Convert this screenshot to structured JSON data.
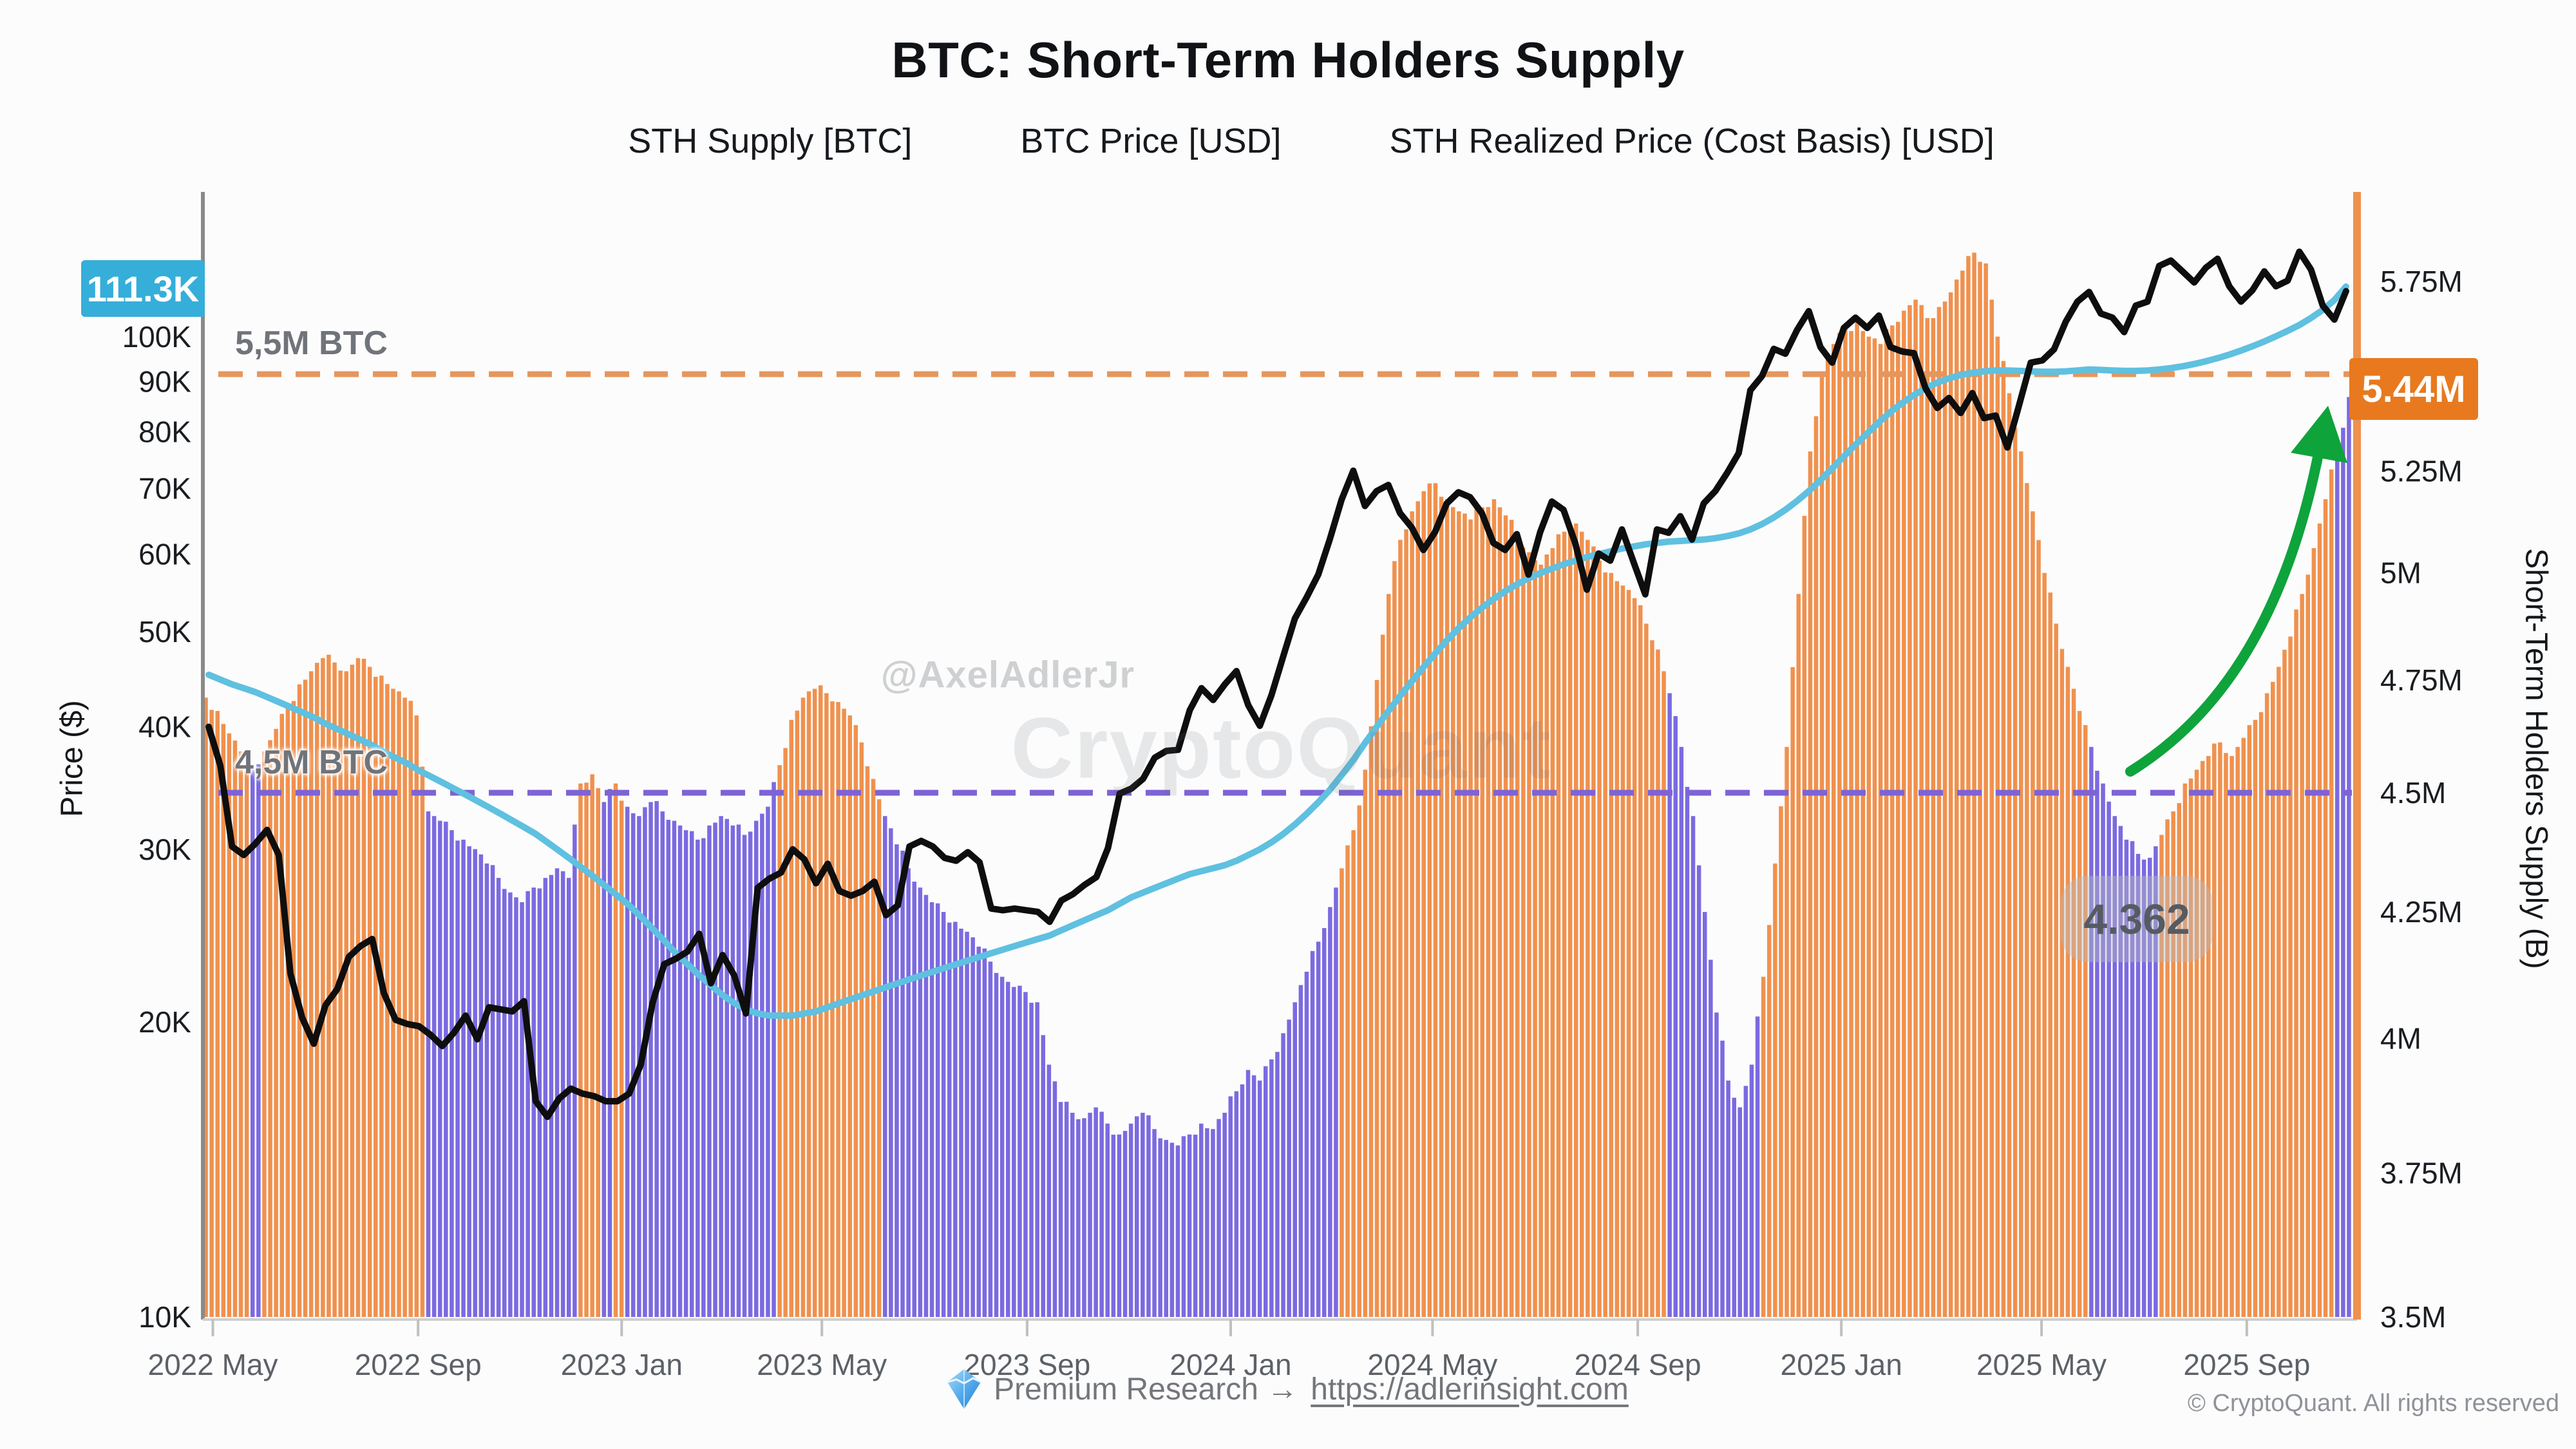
{
  "title": "BTC: Short-Term Holders Supply",
  "legend": {
    "sth_supply": "STH Supply [BTC]",
    "btc_price": "BTC Price [USD]",
    "sth_realized": "STH Realized Price (Cost Basis) [USD]"
  },
  "axes": {
    "left_title": "Price ($)",
    "right_title": "Short-Term Holders Supply (B)"
  },
  "badges": {
    "last_price": "111.3K",
    "last_supply": "5.44M"
  },
  "annotations": {
    "upper_line_label": "5,5M BTC",
    "lower_line_label": "4,5M BTC",
    "min_label": "4.362"
  },
  "watermark": {
    "handle": "@AxelAdlerJr",
    "brand": "CryptoQuant"
  },
  "footer": {
    "gem_icon": "diamond-gem-icon",
    "label": "Premium Research →",
    "link": "https://adlerinsight.com",
    "copyright": "© CryptoQuant. All rights reserved"
  },
  "chart_data": {
    "type": "bar+line",
    "title": "BTC: Short-Term Holders Supply",
    "start_date": "2022-04-25",
    "step": "7d",
    "total_days": 1288,
    "price_axis": {
      "scale": "log",
      "min": 10,
      "max": 138,
      "unit": "K USD"
    },
    "supply_axis": {
      "scale": "log",
      "min": 3.5,
      "max": 5.98,
      "unit": "M BTC"
    },
    "price_ticks": [
      {
        "v": 10,
        "l": "10K"
      },
      {
        "v": 20,
        "l": "20K"
      },
      {
        "v": 30,
        "l": "30K"
      },
      {
        "v": 40,
        "l": "40K"
      },
      {
        "v": 50,
        "l": "50K"
      },
      {
        "v": 60,
        "l": "60K"
      },
      {
        "v": 70,
        "l": "70K"
      },
      {
        "v": 80,
        "l": "80K"
      },
      {
        "v": 90,
        "l": "90K"
      },
      {
        "v": 100,
        "l": "100K"
      }
    ],
    "supply_ticks": [
      {
        "v": 3.5,
        "l": "3.5M"
      },
      {
        "v": 3.75,
        "l": "3.75M"
      },
      {
        "v": 4,
        "l": "4M"
      },
      {
        "v": 4.25,
        "l": "4.25M"
      },
      {
        "v": 4.5,
        "l": "4.5M"
      },
      {
        "v": 4.75,
        "l": "4.75M"
      },
      {
        "v": 5,
        "l": "5M"
      },
      {
        "v": 5.25,
        "l": "5.25M"
      },
      {
        "v": 5.5,
        "l": "5.5M"
      },
      {
        "v": 5.75,
        "l": "5.75M"
      }
    ],
    "x_ticks": [
      {
        "l": "2022 May",
        "d": 6
      },
      {
        "l": "2022 Sep",
        "d": 129
      },
      {
        "l": "2023 Jan",
        "d": 251
      },
      {
        "l": "2023 May",
        "d": 371
      },
      {
        "l": "2023 Sep",
        "d": 494
      },
      {
        "l": "2024 Jan",
        "d": 616
      },
      {
        "l": "2024 May",
        "d": 737
      },
      {
        "l": "2024 Sep",
        "d": 860
      },
      {
        "l": "2025 Jan",
        "d": 982
      },
      {
        "l": "2025 May",
        "d": 1102
      },
      {
        "l": "2025 Sep",
        "d": 1225
      }
    ],
    "reference_lines": [
      {
        "v": 5.5,
        "axis": "supply",
        "label": "5,5M BTC",
        "color": "#e6965c"
      },
      {
        "v": 4.5,
        "axis": "supply",
        "label": "4,5M BTC",
        "color": "#7d63d6"
      }
    ],
    "min_annotation": {
      "value": 4.362,
      "week_index": 166
    },
    "last_values": {
      "btc_price_k": 111.3,
      "sth_supply_m": 5.44
    },
    "colors": {
      "supply_up": "#f0914e",
      "supply_down": "#7b6ae0",
      "price_line": "#0e0e0e",
      "realized_line": "#5fc0e0",
      "arrow_green": "#0fa33c",
      "price_badge": "#35aed9",
      "supply_badge": "#e8791e",
      "right_spine": "#f0914e",
      "left_spine": "#8a8a8a"
    },
    "series": [
      {
        "name": "STH Supply [BTC]",
        "unit": "M",
        "values": [
          4.71,
          4.68,
          4.63,
          4.59,
          4.55,
          4.59,
          4.64,
          4.69,
          4.74,
          4.77,
          4.8,
          4.79,
          4.77,
          4.8,
          4.78,
          4.76,
          4.73,
          4.71,
          4.67,
          4.46,
          4.44,
          4.42,
          4.4,
          4.38,
          4.35,
          4.32,
          4.29,
          4.27,
          4.3,
          4.32,
          4.34,
          4.32,
          4.52,
          4.54,
          4.48,
          4.52,
          4.47,
          4.45,
          4.48,
          4.46,
          4.44,
          4.42,
          4.4,
          4.43,
          4.45,
          4.43,
          4.41,
          4.44,
          4.47,
          4.56,
          4.66,
          4.71,
          4.73,
          4.72,
          4.7,
          4.67,
          4.61,
          4.53,
          4.45,
          4.39,
          4.34,
          4.3,
          4.27,
          4.25,
          4.23,
          4.21,
          4.18,
          4.15,
          4.12,
          4.1,
          4.09,
          4.07,
          3.95,
          3.88,
          3.86,
          3.85,
          3.87,
          3.84,
          3.82,
          3.84,
          3.86,
          3.83,
          3.81,
          3.8,
          3.82,
          3.84,
          3.83,
          3.86,
          3.9,
          3.94,
          3.92,
          3.96,
          4.01,
          4.07,
          4.13,
          4.19,
          4.26,
          4.34,
          4.42,
          4.55,
          4.75,
          4.95,
          5.08,
          5.15,
          5.2,
          5.22,
          5.18,
          5.15,
          5.13,
          5.16,
          5.18,
          5.14,
          5.1,
          5.05,
          5.02,
          5.06,
          5.1,
          5.12,
          5.08,
          5.03,
          5.0,
          4.97,
          4.94,
          4.88,
          4.82,
          4.72,
          4.6,
          4.45,
          4.25,
          4.05,
          3.92,
          3.87,
          3.95,
          4.12,
          4.35,
          4.6,
          4.95,
          5.3,
          5.5,
          5.58,
          5.62,
          5.64,
          5.6,
          5.58,
          5.63,
          5.67,
          5.7,
          5.65,
          5.68,
          5.72,
          5.78,
          5.83,
          5.8,
          5.6,
          5.45,
          5.3,
          5.15,
          5.0,
          4.88,
          4.78,
          4.68,
          4.6,
          4.52,
          4.45,
          4.4,
          4.37,
          4.362,
          4.41,
          4.46,
          4.52,
          4.55,
          4.58,
          4.61,
          4.58,
          4.62,
          4.66,
          4.72,
          4.78,
          4.85,
          4.95,
          5.06,
          5.18,
          5.31,
          5.44
        ]
      },
      {
        "name": "supply_bar_colors",
        "encoding": "O=orange(high regime) P=purple(low regime)",
        "values_str": "OOOOPOOOOOOOOOOOOOOPPPPPPPPPPPPPOOPOPPPPPPPPPPPPPOOOOOOOOOPPPPPPPPPPPPPPPPPPPPPPPPPPPPPPPPPPPPPPPOOOOOOOOOOOOOOOOOOOOOOOOOOOOPPPPPPPPOOOOOOOOOOOOOOOOOOOOOOOOOOOOPPPPPPOOOOOOOOOOOOOOO"
      },
      {
        "name": "BTC Price [USD]",
        "unit": "K",
        "values": [
          40.0,
          36.5,
          30.2,
          29.6,
          30.4,
          31.4,
          29.6,
          22.4,
          20.2,
          19.0,
          20.8,
          21.6,
          23.3,
          23.9,
          24.3,
          21.4,
          20.1,
          19.9,
          19.8,
          19.4,
          18.9,
          19.5,
          20.3,
          19.2,
          20.7,
          20.6,
          20.5,
          21.0,
          16.6,
          16.0,
          16.7,
          17.1,
          16.9,
          16.8,
          16.6,
          16.6,
          16.9,
          18.1,
          20.9,
          22.9,
          23.2,
          23.6,
          24.6,
          21.9,
          23.4,
          22.3,
          20.4,
          27.4,
          28.0,
          28.4,
          30.0,
          29.3,
          27.7,
          29.0,
          27.2,
          26.9,
          27.2,
          27.8,
          25.7,
          26.3,
          30.2,
          30.6,
          30.2,
          29.4,
          29.2,
          29.8,
          29.1,
          26.1,
          26.0,
          26.1,
          26.0,
          25.9,
          25.3,
          26.6,
          27.0,
          27.6,
          28.1,
          30.1,
          34.2,
          34.6,
          35.4,
          37.2,
          37.8,
          37.9,
          41.6,
          43.8,
          42.6,
          44.2,
          45.6,
          42.1,
          40.1,
          43.1,
          47.2,
          51.6,
          54.2,
          57.2,
          62.2,
          68.2,
          73.0,
          67.2,
          69.6,
          70.6,
          66.1,
          63.9,
          60.6,
          63.2,
          67.6,
          69.4,
          68.6,
          66.1,
          61.6,
          60.6,
          62.9,
          57.2,
          63.2,
          67.9,
          66.6,
          61.6,
          55.2,
          60.1,
          59.1,
          63.6,
          58.9,
          54.6,
          63.6,
          63.1,
          65.6,
          62.1,
          67.6,
          69.6,
          72.6,
          76.1,
          88.2,
          91.2,
          97.2,
          96.1,
          101.6,
          106.2,
          97.6,
          94.1,
          102.1,
          104.6,
          102.1,
          105.1,
          97.6,
          96.6,
          96.2,
          88.6,
          84.6,
          86.6,
          83.6,
          87.6,
          82.6,
          83.1,
          77.1,
          85.1,
          94.1,
          94.6,
          97.1,
          103.6,
          108.6,
          111.1,
          105.6,
          104.6,
          101.1,
          107.6,
          108.6,
          118.1,
          119.6,
          116.6,
          113.6,
          117.6,
          120.1,
          112.6,
          108.6,
          111.6,
          116.6,
          112.6,
          114.1,
          122.1,
          117.1,
          107.6,
          104.1,
          111.3
        ]
      },
      {
        "name": "STH Realized Price (Cost Basis) [USD]",
        "unit": "K",
        "values": [
          45.2,
          44.7,
          44.2,
          43.8,
          43.4,
          42.9,
          42.4,
          41.9,
          41.4,
          40.9,
          40.3,
          39.8,
          39.3,
          38.8,
          38.3,
          37.7,
          37.2,
          36.7,
          36.1,
          35.6,
          35.1,
          34.6,
          34.1,
          33.6,
          33.1,
          32.6,
          32.1,
          31.6,
          31.1,
          30.5,
          29.9,
          29.3,
          28.7,
          28.1,
          27.5,
          26.9,
          26.3,
          25.6,
          24.9,
          24.2,
          23.5,
          22.9,
          22.3,
          21.8,
          21.3,
          20.9,
          20.6,
          20.4,
          20.3,
          20.3,
          20.3,
          20.4,
          20.5,
          20.7,
          20.9,
          21.1,
          21.3,
          21.5,
          21.7,
          21.9,
          22.1,
          22.3,
          22.5,
          22.7,
          22.9,
          23.1,
          23.3,
          23.5,
          23.7,
          23.9,
          24.1,
          24.3,
          24.5,
          24.8,
          25.1,
          25.4,
          25.7,
          26.0,
          26.4,
          26.8,
          27.1,
          27.4,
          27.7,
          28.0,
          28.3,
          28.5,
          28.7,
          28.9,
          29.2,
          29.6,
          30.0,
          30.5,
          31.1,
          31.8,
          32.6,
          33.5,
          34.5,
          35.7,
          37.0,
          38.5,
          40.0,
          41.5,
          43.0,
          44.5,
          46.0,
          47.5,
          49.0,
          50.4,
          51.7,
          52.9,
          54.0,
          55.0,
          55.9,
          56.7,
          57.4,
          58.0,
          58.6,
          59.1,
          59.6,
          60.0,
          60.4,
          60.8,
          61.1,
          61.4,
          61.6,
          61.8,
          61.9,
          62.0,
          62.1,
          62.3,
          62.6,
          63.0,
          63.6,
          64.4,
          65.4,
          66.6,
          68.0,
          69.6,
          71.4,
          73.4,
          75.5,
          77.6,
          79.7,
          81.8,
          83.8,
          85.6,
          87.2,
          88.6,
          89.8,
          90.7,
          91.4,
          91.9,
          92.2,
          92.4,
          92.4,
          92.3,
          92.2,
          92.1,
          92.1,
          92.2,
          92.4,
          92.6,
          92.5,
          92.4,
          92.3,
          92.3,
          92.4,
          92.6,
          92.9,
          93.3,
          93.8,
          94.4,
          95.1,
          95.9,
          96.8,
          97.8,
          98.9,
          100.1,
          101.4,
          102.8,
          104.5,
          106.5,
          109.0,
          112.5
        ]
      }
    ]
  }
}
